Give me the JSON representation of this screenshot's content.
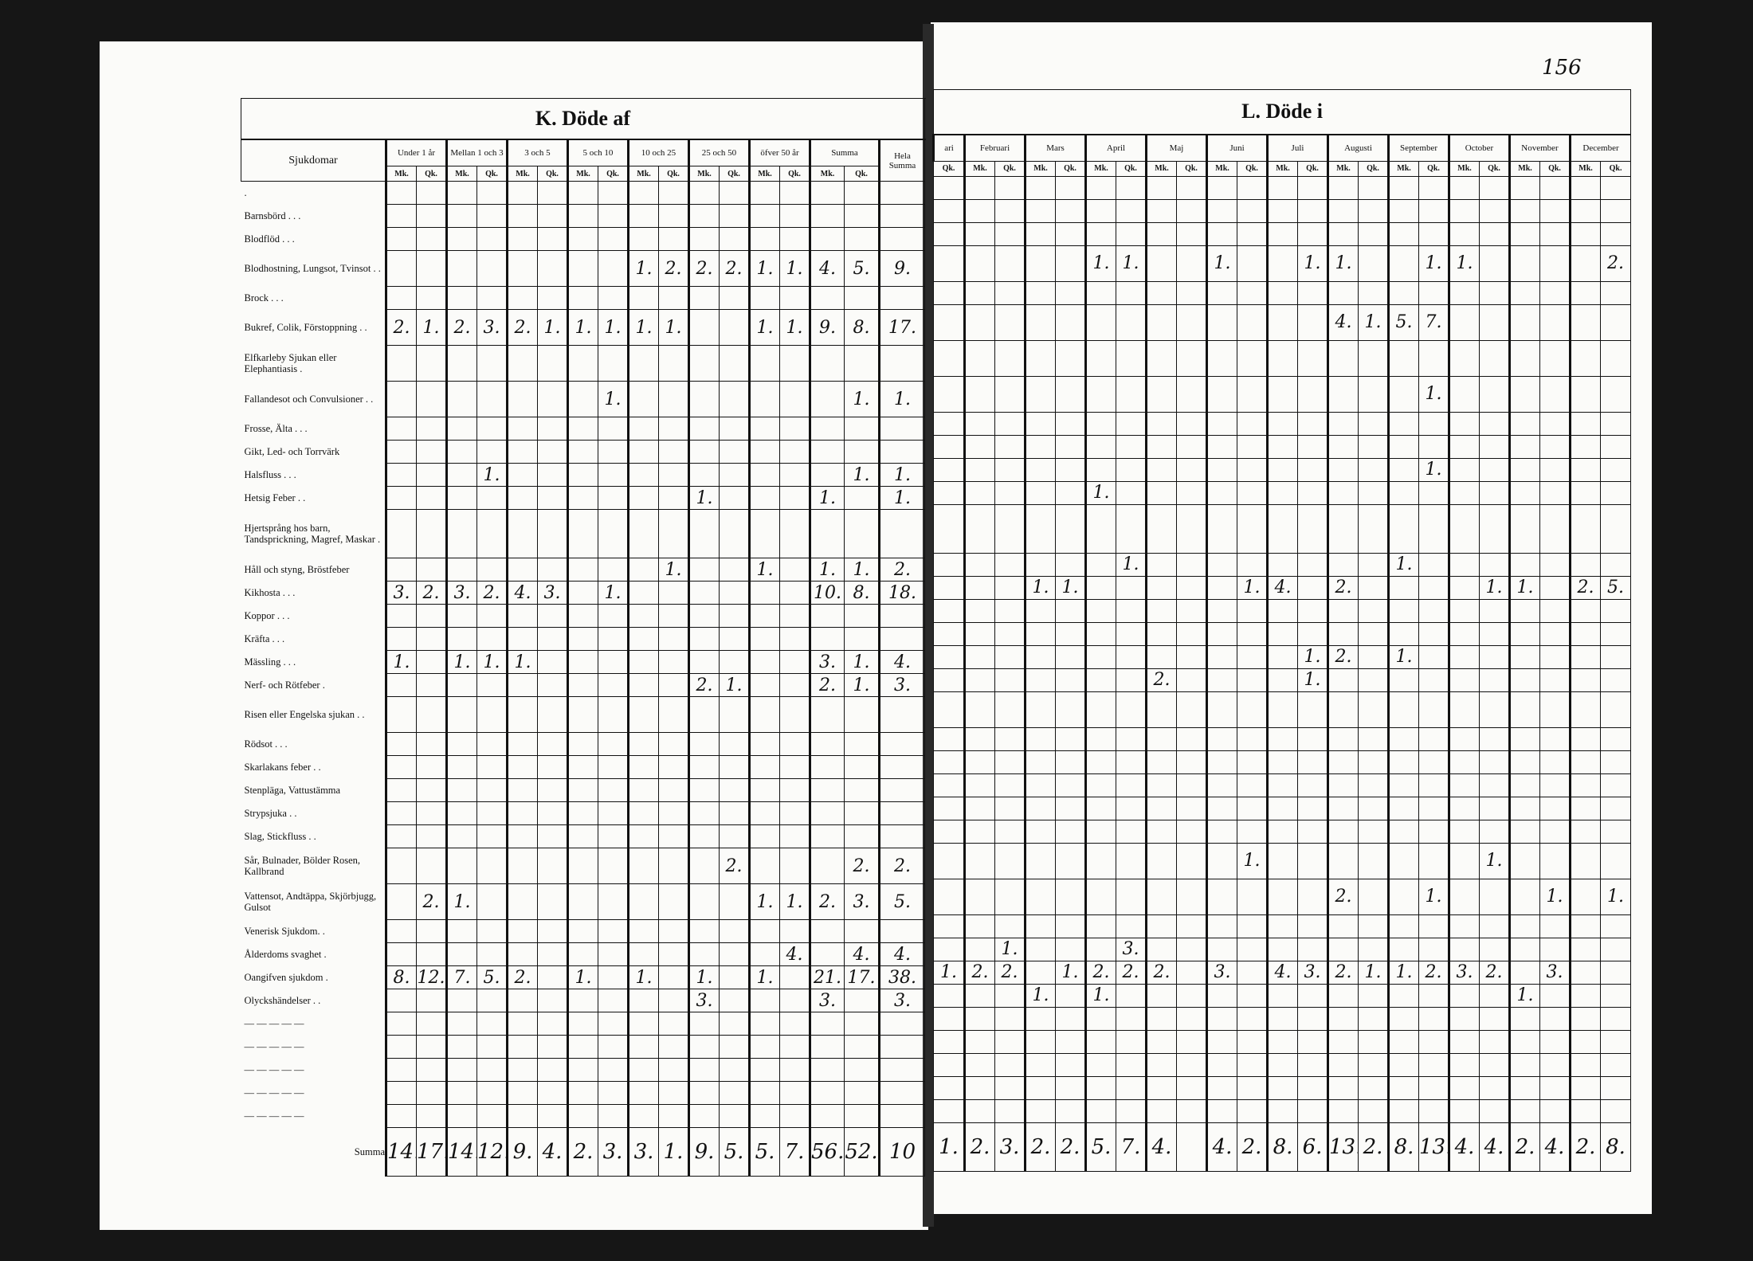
{
  "page_number": "156",
  "left": {
    "title": "K. Döde af",
    "label_header": "Sjukdomar",
    "groups": [
      "Under 1 år",
      "Mellan 1 och 3",
      "3 och 5",
      "5 och 10",
      "10 och 25",
      "25 och 50",
      "öfver 50 år",
      "Summa"
    ],
    "total_header": "Hela Summa",
    "mk": "Mk.",
    "qk": "Qk.",
    "rows": [
      {
        "label": ".",
        "h": "s",
        "values": []
      },
      {
        "label": "Barnsbörd . . .",
        "h": "s",
        "values": []
      },
      {
        "label": "Blodflöd . . .",
        "h": "s",
        "values": []
      },
      {
        "label": "Blodhostning, Lungsot, Tvinsot . .",
        "h": "d",
        "values": [
          "",
          "",
          "",
          "",
          "",
          "",
          "",
          "",
          "1.",
          "2.",
          "2.",
          "2.",
          "1.",
          "1.",
          "4.",
          "5.",
          "9."
        ]
      },
      {
        "label": "Brock . . .",
        "h": "s",
        "values": []
      },
      {
        "label": "Bukref, Colik, Förstoppning . .",
        "h": "d",
        "values": [
          "2.",
          "1.",
          "2.",
          "3.",
          "2.",
          "1.",
          "1.",
          "1.",
          "1.",
          "1.",
          "",
          "",
          "1.",
          "1.",
          "9.",
          "8.",
          "17."
        ]
      },
      {
        "label": "Elfkarleby Sjukan eller Elephantiasis .",
        "h": "d",
        "values": []
      },
      {
        "label": "Fallandesot och Convulsioner . .",
        "h": "d",
        "values": [
          "",
          "",
          "",
          "",
          "",
          "",
          "",
          "1.",
          "",
          "",
          "",
          "",
          "",
          "",
          "",
          "1.",
          "1."
        ]
      },
      {
        "label": "Frosse, Älta . . .",
        "h": "s",
        "values": []
      },
      {
        "label": "Gikt, Led- och Torrvärk",
        "h": "s",
        "values": []
      },
      {
        "label": "Halsfluss . . .",
        "h": "s",
        "values": [
          "",
          "",
          "",
          "1.",
          "",
          "",
          "",
          "",
          "",
          "",
          "",
          "",
          "",
          "",
          "",
          "1.",
          "1."
        ]
      },
      {
        "label": "Hetsig Feber . .",
        "h": "s",
        "values": [
          "",
          "",
          "",
          "",
          "",
          "",
          "",
          "",
          "",
          "",
          "1.",
          "",
          "",
          "",
          "1.",
          "",
          "1."
        ]
      },
      {
        "label": "Hjertsprång hos barn, Tandsprickning, Magref, Maskar .",
        "h": "t",
        "values": []
      },
      {
        "label": "Håll och styng, Bröstfeber",
        "h": "s",
        "values": [
          "",
          "",
          "",
          "",
          "",
          "",
          "",
          "",
          "",
          "1.",
          "",
          "",
          "1.",
          "",
          "1.",
          "1.",
          "2."
        ]
      },
      {
        "label": "Kikhosta . . .",
        "h": "s",
        "values": [
          "3.",
          "2.",
          "3.",
          "2.",
          "4.",
          "3.",
          "",
          "1.",
          "",
          "",
          "",
          "",
          "",
          "",
          "10.",
          "8.",
          "18."
        ]
      },
      {
        "label": "Koppor . . .",
        "h": "s",
        "values": []
      },
      {
        "label": "Kräfta . . .",
        "h": "s",
        "values": []
      },
      {
        "label": "Mässling . . .",
        "h": "s",
        "values": [
          "1.",
          "",
          "1.",
          "1.",
          "1.",
          "",
          "",
          "",
          "",
          "",
          "",
          "",
          "",
          "",
          "3.",
          "1.",
          "4."
        ]
      },
      {
        "label": "Nerf- och Rötfeber .",
        "h": "s",
        "values": [
          "",
          "",
          "",
          "",
          "",
          "",
          "",
          "",
          "",
          "",
          "2.",
          "1.",
          "",
          "",
          "2.",
          "1.",
          "3."
        ]
      },
      {
        "label": "Risen eller Engelska sjukan . .",
        "h": "d",
        "values": []
      },
      {
        "label": "Rödsot . . .",
        "h": "s",
        "values": []
      },
      {
        "label": "Skarlakans feber . .",
        "h": "s",
        "values": []
      },
      {
        "label": "Stenpläga, Vattustämma",
        "h": "s",
        "values": []
      },
      {
        "label": "Strypsjuka . .",
        "h": "s",
        "values": []
      },
      {
        "label": "Slag, Stickfluss . .",
        "h": "s",
        "values": []
      },
      {
        "label": "Sår, Bulnader, Bölder Rosen, Kallbrand",
        "h": "d",
        "values": [
          "",
          "",
          "",
          "",
          "",
          "",
          "",
          "",
          "",
          "",
          "",
          "2.",
          "",
          "",
          "",
          "2.",
          "2."
        ]
      },
      {
        "label": "Vattensot, Andtäppa, Skjörbjugg, Gulsot",
        "h": "d",
        "values": [
          "",
          "2.",
          "1.",
          "",
          "",
          "",
          "",
          "",
          "",
          "",
          "",
          "",
          "1.",
          "1.",
          "2.",
          "3.",
          "5."
        ]
      },
      {
        "label": "Venerisk Sjukdom. .",
        "h": "s",
        "values": []
      },
      {
        "label": "Ålderdoms svaghet .",
        "h": "s",
        "values": [
          "",
          "",
          "",
          "",
          "",
          "",
          "",
          "",
          "",
          "",
          "",
          "",
          "",
          "4.",
          "",
          "4.",
          "4."
        ]
      },
      {
        "label": "Oangifven sjukdom .",
        "h": "s",
        "values": [
          "8.",
          "12.",
          "7.",
          "5.",
          "2.",
          "",
          "1.",
          "",
          "1.",
          "",
          "1.",
          "",
          "1.",
          "",
          "21.",
          "17.",
          "38."
        ]
      },
      {
        "label": "Olyckshändelser . .",
        "h": "s",
        "values": [
          "",
          "",
          "",
          "",
          "",
          "",
          "",
          "",
          "",
          "",
          "3.",
          "",
          "",
          "",
          "3.",
          "",
          "3."
        ]
      },
      {
        "label": "— — — — —",
        "h": "s",
        "values": []
      },
      {
        "label": "— — — — —",
        "h": "s",
        "values": []
      },
      {
        "label": "— — — — —",
        "h": "s",
        "values": []
      },
      {
        "label": "— — — — —",
        "h": "s",
        "values": []
      },
      {
        "label": "— — — — —",
        "h": "s",
        "values": []
      }
    ],
    "summa": {
      "label": "Summa",
      "values": [
        "14.",
        "17.",
        "14.",
        "12.",
        "9.",
        "4.",
        "2.",
        "3.",
        "3.",
        "1.",
        "9.",
        "5.",
        "5.",
        "7.",
        "56.",
        "52.",
        "10"
      ]
    }
  },
  "right": {
    "title": "L. Döde i",
    "months": [
      "ari",
      "Februari",
      "Mars",
      "April",
      "Maj",
      "Juni",
      "Juli",
      "Augusti",
      "September",
      "October",
      "November",
      "December"
    ],
    "mk": "Mk.",
    "qk": "Qk.",
    "rows": [
      {
        "values": []
      },
      {
        "values": []
      },
      {
        "values": []
      },
      {
        "values": [
          "",
          "",
          "",
          "",
          "",
          "1.",
          "1.",
          "",
          "",
          "1.",
          "",
          "",
          "1.",
          "1.",
          "",
          "",
          "1.",
          "1.",
          "",
          "",
          "",
          "",
          "2."
        ]
      },
      {
        "values": []
      },
      {
        "values": [
          "",
          "",
          "",
          "",
          "",
          "",
          "",
          "",
          "",
          "",
          "",
          "",
          "",
          "4.",
          "1.",
          "5.",
          "7.",
          "",
          "",
          "",
          "",
          "",
          ""
        ]
      },
      {
        "values": []
      },
      {
        "values": [
          "",
          "",
          "",
          "",
          "",
          "",
          "",
          "",
          "",
          "",
          "",
          "",
          "",
          "",
          "",
          "",
          "1.",
          "",
          "",
          "",
          "",
          "",
          ""
        ]
      },
      {
        "values": []
      },
      {
        "values": []
      },
      {
        "values": [
          "",
          "",
          "",
          "",
          "",
          "",
          "",
          "",
          "",
          "",
          "",
          "",
          "",
          "",
          "",
          "",
          "1.",
          "",
          "",
          "",
          "",
          "",
          ""
        ]
      },
      {
        "values": [
          "",
          "",
          "",
          "",
          "",
          "1.",
          "",
          "",
          "",
          "",
          "",
          "",
          "",
          "",
          "",
          "",
          "",
          "",
          "",
          "",
          "",
          "",
          ""
        ]
      },
      {
        "values": []
      },
      {
        "values": [
          "",
          "",
          "",
          "",
          "",
          "",
          "1.",
          "",
          "",
          "",
          "",
          "",
          "",
          "",
          "",
          "1.",
          "",
          "",
          "",
          "",
          "",
          "",
          ""
        ]
      },
      {
        "values": [
          "",
          "",
          "",
          "1.",
          "1.",
          "",
          "",
          "",
          "",
          "",
          "1.",
          "4.",
          "",
          "2.",
          "",
          "",
          "",
          "",
          "1.",
          "1.",
          "",
          "2.",
          "5."
        ]
      },
      {
        "values": []
      },
      {
        "values": []
      },
      {
        "values": [
          "",
          "",
          "",
          "",
          "",
          "",
          "",
          "",
          "",
          "",
          "",
          "",
          "1.",
          "2.",
          "",
          "1.",
          "",
          "",
          "",
          "",
          "",
          "",
          ""
        ]
      },
      {
        "values": [
          "",
          "",
          "",
          "",
          "",
          "",
          "",
          "2.",
          "",
          "",
          "",
          "",
          "1.",
          "",
          "",
          "",
          "",
          "",
          "",
          "",
          "",
          "",
          ""
        ]
      },
      {
        "values": []
      },
      {
        "values": []
      },
      {
        "values": []
      },
      {
        "values": []
      },
      {
        "values": []
      },
      {
        "values": []
      },
      {
        "values": [
          "",
          "",
          "",
          "",
          "",
          "",
          "",
          "",
          "",
          "",
          "1.",
          "",
          "",
          "",
          "",
          "",
          "",
          "",
          "1.",
          "",
          "",
          "",
          ""
        ]
      },
      {
        "values": [
          "",
          "",
          "",
          "",
          "",
          "",
          "",
          "",
          "",
          "",
          "",
          "",
          "",
          "2.",
          "",
          "",
          "1.",
          "",
          "",
          "",
          "1.",
          "",
          "1."
        ]
      },
      {
        "values": []
      },
      {
        "values": [
          "",
          "",
          "1.",
          "",
          "",
          "",
          "3.",
          "",
          "",
          "",
          "",
          "",
          "",
          "",
          "",
          "",
          "",
          "",
          "",
          "",
          "",
          "",
          ""
        ]
      },
      {
        "values": [
          "1.",
          "2.",
          "2.",
          "",
          "1.",
          "2.",
          "2.",
          "2.",
          "",
          "3.",
          "",
          "4.",
          "3.",
          "2.",
          "1.",
          "1.",
          "2.",
          "3.",
          "2.",
          "",
          "3.",
          "",
          ""
        ]
      },
      {
        "values": [
          "",
          "",
          "",
          "1.",
          "",
          "1.",
          "",
          "",
          "",
          "",
          "",
          "",
          "",
          "",
          "",
          "",
          "",
          "",
          "",
          "1.",
          "",
          "",
          ""
        ]
      },
      {
        "values": []
      },
      {
        "values": []
      },
      {
        "values": []
      },
      {
        "values": []
      },
      {
        "values": []
      }
    ],
    "summa": {
      "values": [
        "1.",
        "2.",
        "3.",
        "2.",
        "2.",
        "5.",
        "7.",
        "4.",
        "",
        "4.",
        "2.",
        "8.",
        "6.",
        "13.",
        "2.",
        "8.",
        "13.",
        "4.",
        "4.",
        "2.",
        "4.",
        "2.",
        "8."
      ]
    }
  }
}
